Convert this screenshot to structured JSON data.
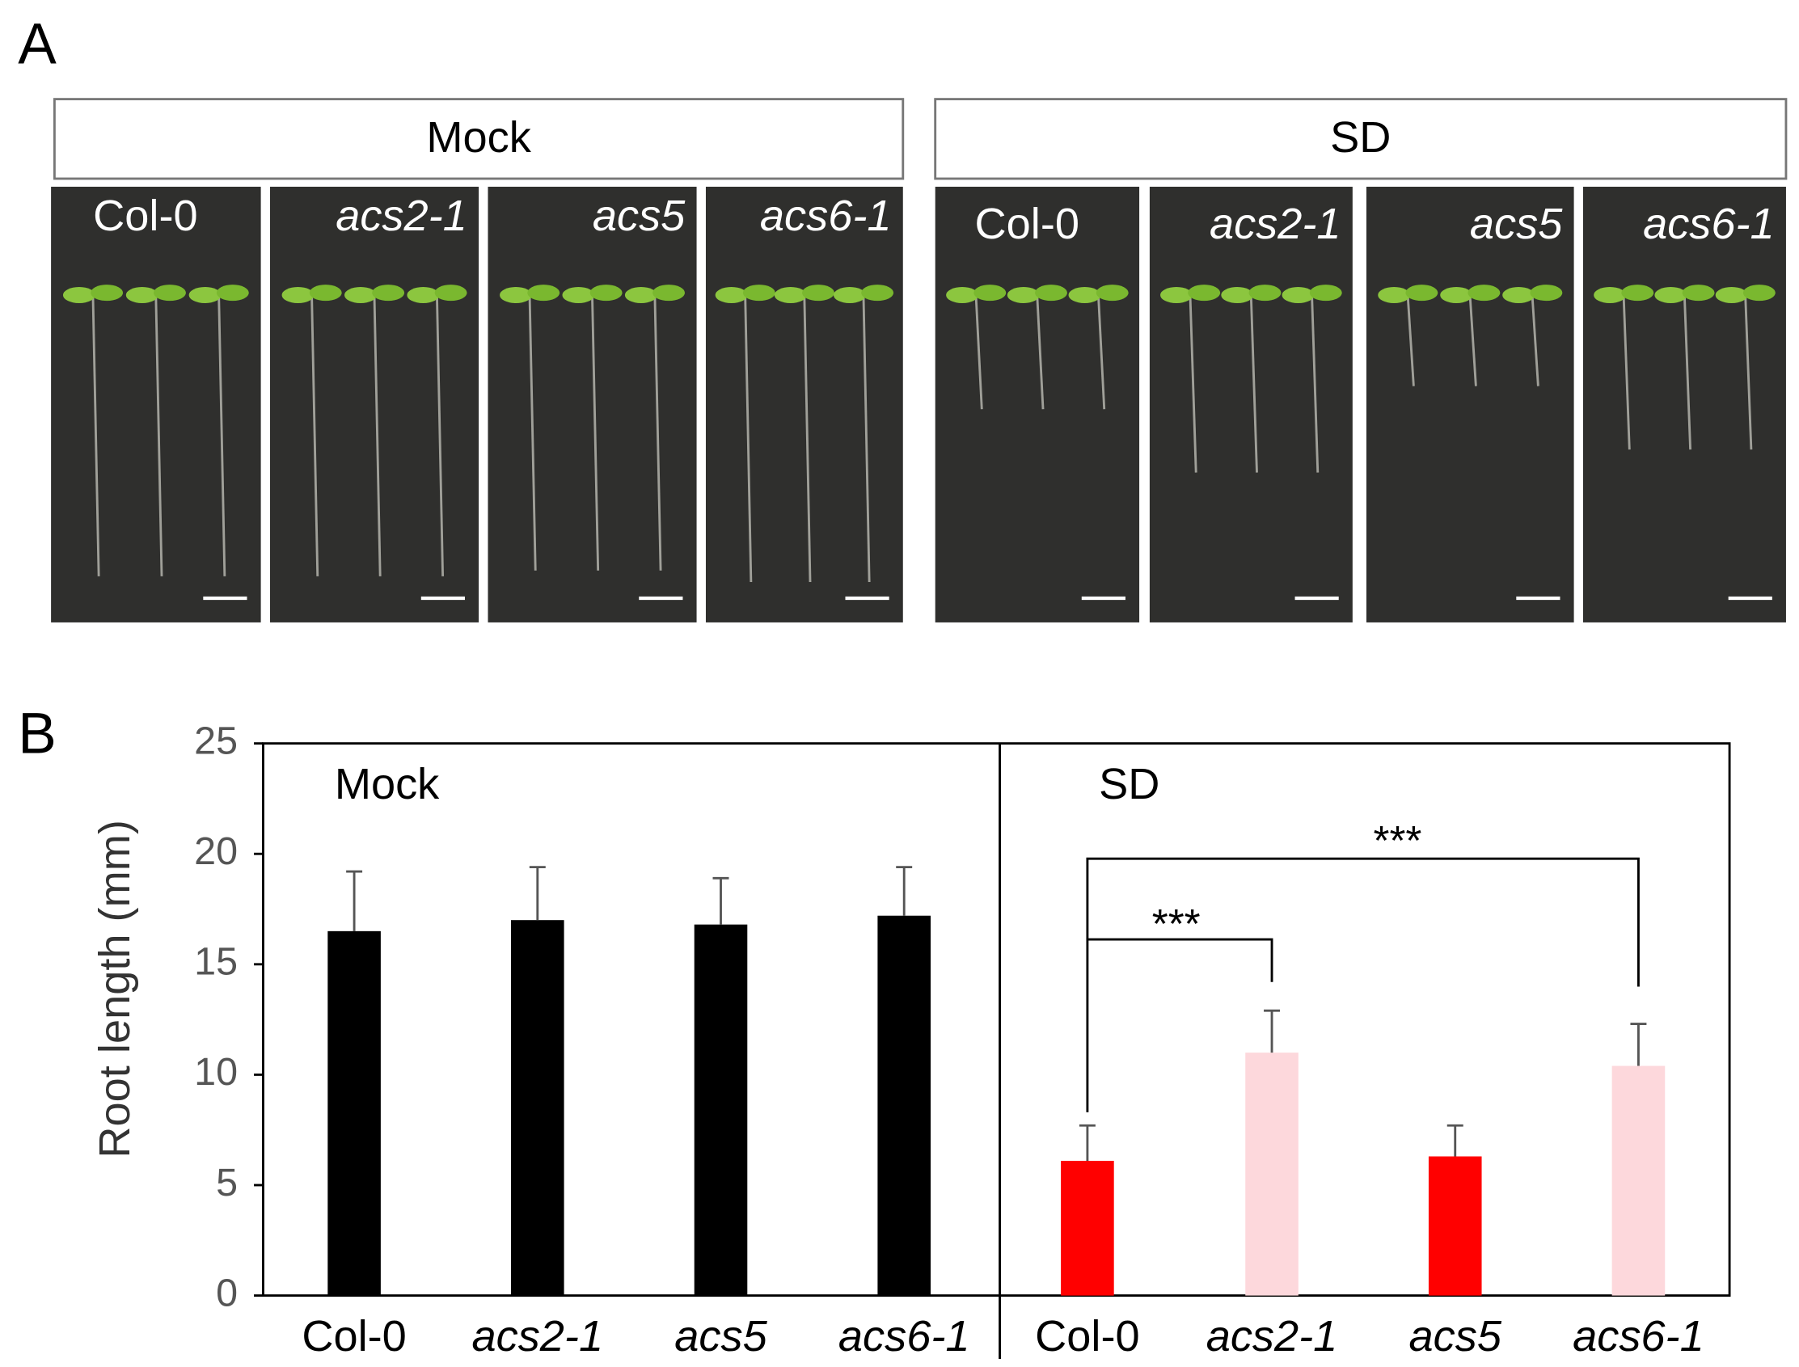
{
  "panel_a": {
    "label": "A",
    "groups": [
      {
        "title": "Mock",
        "labels": [
          "Col-0",
          "acs2-1",
          "acs5",
          "acs6-1"
        ]
      },
      {
        "title": "SD",
        "labels": [
          "Col-0",
          "acs2-1",
          "acs5",
          "acs6-1"
        ]
      }
    ]
  },
  "chart_data": {
    "type": "bar",
    "panel_label": "B",
    "ylabel": "Root length (mm)",
    "groups": [
      "Mock",
      "SD"
    ],
    "categories": [
      "Col-0",
      "acs2-1",
      "acs5",
      "acs6-1",
      "Col-0",
      "acs2-1",
      "acs5",
      "acs6-1"
    ],
    "values": [
      16.5,
      17.0,
      16.8,
      17.2,
      6.1,
      11.0,
      6.3,
      10.4
    ],
    "errors": [
      2.7,
      2.4,
      2.1,
      2.2,
      1.6,
      1.9,
      1.4,
      1.9
    ],
    "colors": [
      "#000000",
      "#000000",
      "#000000",
      "#000000",
      "#ff0000",
      "#fdd8dc",
      "#ff0000",
      "#fdd8dc"
    ],
    "annotations": [
      "***",
      "***"
    ],
    "ylim": [
      0,
      25
    ],
    "yticks": [
      0,
      5,
      10,
      15,
      20,
      25
    ]
  }
}
